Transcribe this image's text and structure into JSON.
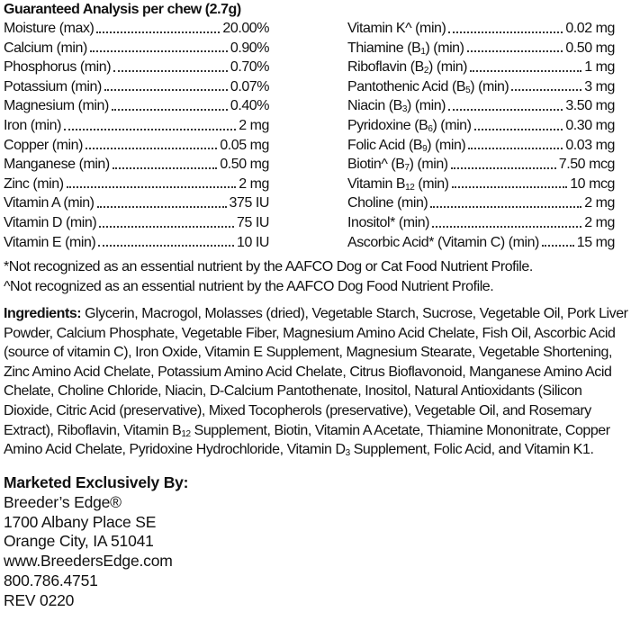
{
  "analysis": {
    "title": "Guaranteed Analysis per chew (2.7g)",
    "left": [
      {
        "label": [
          "Moisture (max)"
        ],
        "value": "20.00%"
      },
      {
        "label": [
          "Calcium (min)"
        ],
        "value": "0.90%"
      },
      {
        "label": [
          "Phosphorus (min)"
        ],
        "value": "0.70%"
      },
      {
        "label": [
          "Potassium (min)"
        ],
        "value": "0.07%"
      },
      {
        "label": [
          "Magnesium (min)"
        ],
        "value": "0.40%"
      },
      {
        "label": [
          "Iron (min)"
        ],
        "value": "2 mg"
      },
      {
        "label": [
          "Copper (min)"
        ],
        "value": "0.05 mg"
      },
      {
        "label": [
          "Manganese (min)"
        ],
        "value": "0.50 mg"
      },
      {
        "label": [
          "Zinc (min)"
        ],
        "value": "2 mg"
      },
      {
        "label": [
          "Vitamin A (min)"
        ],
        "value": "375 IU"
      },
      {
        "label": [
          "Vitamin D (min)"
        ],
        "value": "75 IU"
      },
      {
        "label": [
          "Vitamin E (min)"
        ],
        "value": "10 IU"
      }
    ],
    "right": [
      {
        "label": [
          "Vitamin K^ (min)"
        ],
        "value": "0.02 mg"
      },
      {
        "label": [
          "Thiamine (B",
          {
            "sub": "1"
          },
          ") (min)"
        ],
        "value": "0.50 mg"
      },
      {
        "label": [
          "Riboflavin (B",
          {
            "sub": "2"
          },
          ") (min)"
        ],
        "value": "1 mg"
      },
      {
        "label": [
          "Pantothenic Acid (B",
          {
            "sub": "5"
          },
          ") (min)"
        ],
        "value": "3 mg"
      },
      {
        "label": [
          "Niacin (B",
          {
            "sub": "3"
          },
          ") (min)"
        ],
        "value": "3.50 mg"
      },
      {
        "label": [
          "Pyridoxine (B",
          {
            "sub": "6"
          },
          ") (min)"
        ],
        "value": "0.30 mg"
      },
      {
        "label": [
          "Folic Acid (B",
          {
            "sub": "9"
          },
          ") (min)"
        ],
        "value": "0.03 mg"
      },
      {
        "label": [
          "Biotin^ (B",
          {
            "sub": "7"
          },
          ") (min)"
        ],
        "value": "7.50 mcg"
      },
      {
        "label": [
          "Vitamin B",
          {
            "sub": "12"
          },
          " (min)"
        ],
        "value": "10 mcg"
      },
      {
        "label": [
          "Choline (min)"
        ],
        "value": "2 mg"
      },
      {
        "label": [
          "Inositol* (min)"
        ],
        "value": "2 mg"
      },
      {
        "label": [
          "Ascorbic Acid* (Vitamin C) (min)"
        ],
        "value": "15 mg"
      }
    ]
  },
  "footnotes": [
    "*Not recognized as an essential nutrient by the AAFCO Dog or Cat Food Nutrient Profile.",
    "^Not recognized as an essential nutrient by the AAFCO Dog Food Nutrient Profile."
  ],
  "ingredients": {
    "heading": "Ingredients:",
    "lines": [
      [
        " Glycerin, Macrogol, Molasses (dried), Vegetable Starch, Sucrose, Vegetable Oil, Pork Liver"
      ],
      [
        "Powder, Calcium Phosphate, Vegetable Fiber, Magnesium Amino Acid Chelate, Fish Oil, Ascorbic Acid"
      ],
      [
        "(source of vitamin C), Iron Oxide, Vitamin E Supplement, Magnesium Stearate, Vegetable Shortening,"
      ],
      [
        "Zinc Amino Acid Chelate, Potassium Amino Acid Chelate, Citrus Bioflavonoid, Manganese Amino Acid"
      ],
      [
        "Chelate, Choline Chloride, Niacin, D-Calcium Pantothenate, Inositol, Natural Antioxidants (Silicon"
      ],
      [
        "Dioxide, Citric Acid (preservative), Mixed Tocopherols (preservative), Vegetable Oil, and Rosemary"
      ],
      [
        "Extract), Riboflavin, Vitamin B",
        {
          "sub": "12"
        },
        " Supplement, Biotin, Vitamin A Acetate, Thiamine Mononitrate, Copper"
      ],
      [
        "Amino Acid Chelate, Pyridoxine Hydrochloride, Vitamin D",
        {
          "sub": "3"
        },
        " Supplement, Folic Acid, and Vitamin K1."
      ]
    ]
  },
  "marketer": {
    "heading": "Marketed Exclusively By:",
    "name": "Breeder’s Edge®",
    "street": "1700 Albany Place SE",
    "city": "Orange City, IA 51041",
    "website": "www.BreedersEdge.com",
    "phone": "800.786.4751",
    "revision": "REV 0220"
  }
}
